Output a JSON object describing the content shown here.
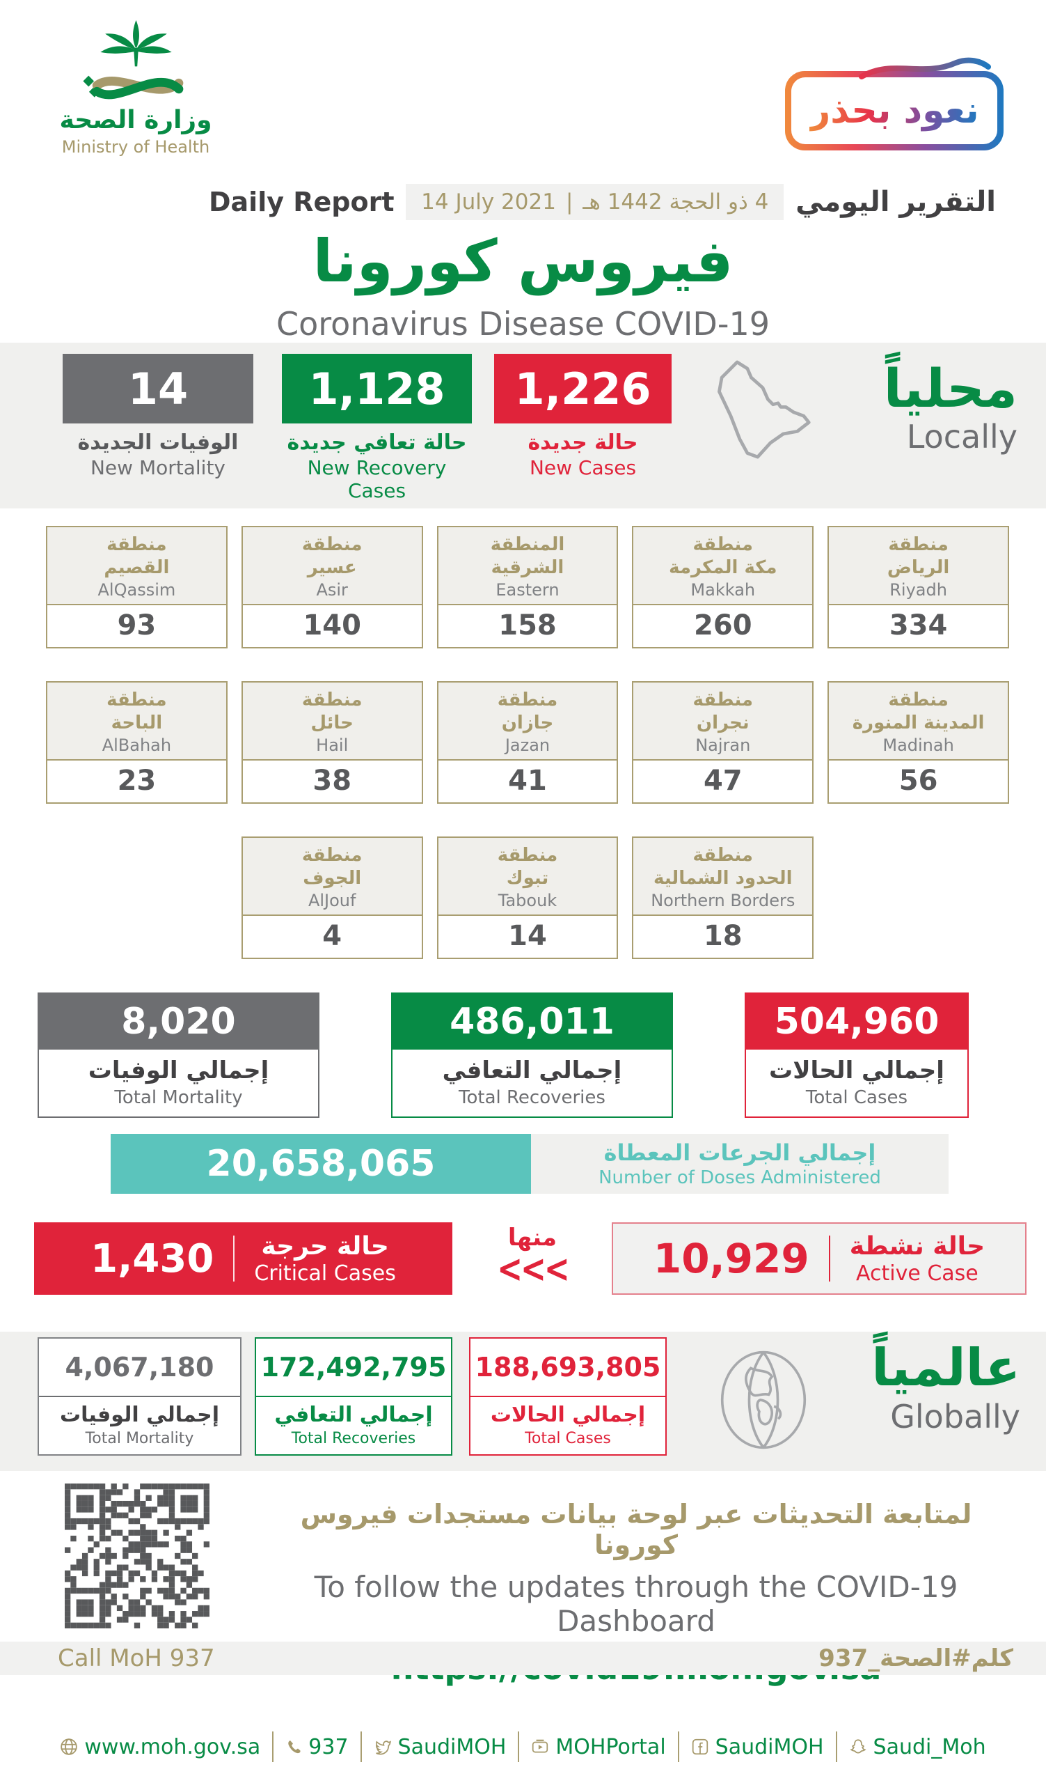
{
  "colors": {
    "green": "#078B45",
    "red": "#E0233A",
    "teal": "#5BC4BC",
    "gold": "#A6996B",
    "dark_gray": "#6D6E71",
    "band_gray": "#F0F0EE"
  },
  "header": {
    "ministry_name_ar": "وزارة الصحة",
    "ministry_name_en": "Ministry of Health",
    "badge_text_ar": "نعود بحذر",
    "report_label_en": "Daily Report",
    "date_en": "14 July 2021",
    "date_separator": "|",
    "date_ar": "4 ذو الحجة 1442 هـ",
    "report_label_ar": "التقرير اليومي",
    "title_ar": "فيروس كورونا",
    "title_en": "Coronavirus Disease COVID-19"
  },
  "locally": {
    "heading_ar": "محلياً",
    "heading_en": "Locally",
    "new_mortality": {
      "value": "14",
      "label_ar": "الوفيات الجديدة",
      "label_en": "New Mortality"
    },
    "new_recoveries": {
      "value": "1,128",
      "label_ar": "حالة تعافي جديدة",
      "label_en": "New Recovery Cases"
    },
    "new_cases": {
      "value": "1,226",
      "label_ar": "حالة جديدة",
      "label_en": "New Cases"
    }
  },
  "regions": {
    "cards": [
      {
        "ar1": "منطقة",
        "ar2": "القصيم",
        "en": "AlQassim",
        "value": "93"
      },
      {
        "ar1": "منطقة",
        "ar2": "عسير",
        "en": "Asir",
        "value": "140"
      },
      {
        "ar1": "المنطقة",
        "ar2": "الشرقية",
        "en": "Eastern",
        "value": "158"
      },
      {
        "ar1": "منطقة",
        "ar2": "مكة المكرمة",
        "en": "Makkah",
        "value": "260"
      },
      {
        "ar1": "منطقة",
        "ar2": "الرياض",
        "en": "Riyadh",
        "value": "334"
      },
      {
        "ar1": "منطقة",
        "ar2": "الباحة",
        "en": "AlBahah",
        "value": "23"
      },
      {
        "ar1": "منطقة",
        "ar2": "حائل",
        "en": "Hail",
        "value": "38"
      },
      {
        "ar1": "منطقة",
        "ar2": "جازان",
        "en": "Jazan",
        "value": "41"
      },
      {
        "ar1": "منطقة",
        "ar2": "نجران",
        "en": "Najran",
        "value": "47"
      },
      {
        "ar1": "منطقة",
        "ar2": "المدينة المنورة",
        "en": "Madinah",
        "value": "56"
      },
      {
        "ar1": "منطقة",
        "ar2": "الجوف",
        "en": "AlJouf",
        "value": "4"
      },
      {
        "ar1": "منطقة",
        "ar2": "تبوك",
        "en": "Tabouk",
        "value": "14"
      },
      {
        "ar1": "منطقة",
        "ar2": "الحدود الشمالية",
        "en": "Northern Borders",
        "value": "18"
      }
    ]
  },
  "totals": {
    "mortality": {
      "value": "8,020",
      "label_ar": "إجمالي الوفيات",
      "label_en": "Total Mortality"
    },
    "recoveries": {
      "value": "486,011",
      "label_ar": "إجمالي التعافي",
      "label_en": "Total Recoveries"
    },
    "cases": {
      "value": "504,960",
      "label_ar": "إجمالي الحالات",
      "label_en": "Total Cases"
    }
  },
  "doses": {
    "value": "20,658,065",
    "label_ar": "إجمالي الجرعات المعطاة",
    "label_en": "Number of Doses Administered"
  },
  "critical": {
    "value": "1,430",
    "label_ar": "حالة حرجة",
    "label_en": "Critical Cases"
  },
  "of_which": {
    "word_ar": "منها",
    "chevrons": "<<<"
  },
  "active": {
    "value": "10,929",
    "label_ar": "حالة نشطة",
    "label_en": "Active Case"
  },
  "globally": {
    "heading_ar": "عالمياً",
    "heading_en": "Globally",
    "mortality": {
      "value": "4,067,180",
      "label_ar": "إجمالي الوفيات",
      "label_en": "Total Mortality"
    },
    "recoveries": {
      "value": "172,492,795",
      "label_ar": "إجمالي التعافي",
      "label_en": "Total Recoveries"
    },
    "cases": {
      "value": "188,693,805",
      "label_ar": "إجمالي الحالات",
      "label_en": "Total Cases"
    }
  },
  "dashboard": {
    "text_ar": "لمتابعة التحديثات عبر لوحة بيانات مستجدات فيروس كورونا",
    "text_en": "To follow the updates through the COVID-19 Dashboard",
    "url": "https://covid19.moh.gov.sa"
  },
  "contact": {
    "call_en": "Call MoH 937",
    "hashtag_ar": "كلم#الصحة_937"
  },
  "footer": {
    "links": [
      {
        "icon": "globe-icon",
        "text": "www.moh.gov.sa"
      },
      {
        "icon": "phone-icon",
        "text": "937"
      },
      {
        "icon": "twitter-icon",
        "text": "SaudiMOH"
      },
      {
        "icon": "youtube-icon",
        "text": "MOHPortal"
      },
      {
        "icon": "facebook-icon",
        "text": "SaudiMOH"
      },
      {
        "icon": "snapchat-icon",
        "text": "Saudi_Moh"
      }
    ]
  }
}
